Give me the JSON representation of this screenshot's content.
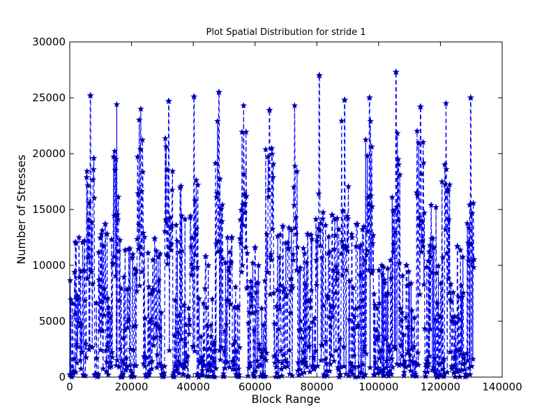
{
  "chart_data": {
    "type": "scatter",
    "title": "Plot Spatial Distribution for stride 1",
    "xlabel": "Block Range",
    "ylabel": "Number of Stresses",
    "xlim": [
      0,
      140000
    ],
    "ylim": [
      0,
      30000
    ],
    "xticks": [
      0,
      20000,
      40000,
      60000,
      80000,
      100000,
      120000,
      140000
    ],
    "xtick_labels": [
      "0",
      "20000",
      "40000",
      "60000",
      "80000",
      "100000",
      "120000",
      "140000"
    ],
    "yticks": [
      0,
      5000,
      10000,
      15000,
      20000,
      25000,
      30000
    ],
    "ytick_labels": [
      "0",
      "5000",
      "10000",
      "15000",
      "20000",
      "25000",
      "30000"
    ],
    "grid": false,
    "series": [
      {
        "line_style": "dashed",
        "marker": "star",
        "color": "#0000ff",
        "marker_color": "#000066",
        "x_range": [
          0,
          131000
        ],
        "baseline": 0,
        "peaks": [
          {
            "x": 6700,
            "y": 25200
          },
          {
            "x": 15200,
            "y": 24400
          },
          {
            "x": 23000,
            "y": 24000
          },
          {
            "x": 32000,
            "y": 24700
          },
          {
            "x": 40200,
            "y": 25100
          },
          {
            "x": 48300,
            "y": 25500
          },
          {
            "x": 56300,
            "y": 24300
          },
          {
            "x": 64700,
            "y": 23900
          },
          {
            "x": 72800,
            "y": 24300
          },
          {
            "x": 80800,
            "y": 27000
          },
          {
            "x": 89000,
            "y": 24800
          },
          {
            "x": 97000,
            "y": 25000
          },
          {
            "x": 105600,
            "y": 27300
          },
          {
            "x": 113600,
            "y": 24200
          },
          {
            "x": 121800,
            "y": 24500
          },
          {
            "x": 129800,
            "y": 25000
          }
        ],
        "peak_shoulder_values": [
          24000,
          23000,
          21000,
          20000,
          18000,
          17000,
          15500,
          14000,
          13000,
          12000
        ],
        "secondary_maxima": [
          {
            "x": 3000,
            "y": 12500
          },
          {
            "x": 11500,
            "y": 13700
          },
          {
            "x": 19500,
            "y": 11500
          },
          {
            "x": 27500,
            "y": 12400
          },
          {
            "x": 36000,
            "y": 17100
          },
          {
            "x": 44000,
            "y": 10800
          },
          {
            "x": 52500,
            "y": 12500
          },
          {
            "x": 60000,
            "y": 11600
          },
          {
            "x": 69000,
            "y": 13500
          },
          {
            "x": 77000,
            "y": 12800
          },
          {
            "x": 85000,
            "y": 14500
          },
          {
            "x": 93000,
            "y": 13700
          },
          {
            "x": 101000,
            "y": 10000
          },
          {
            "x": 109000,
            "y": 10000
          },
          {
            "x": 117000,
            "y": 15400
          },
          {
            "x": 125500,
            "y": 11700
          }
        ],
        "mid_band": [
          0,
          14000
        ],
        "seed": 1337
      }
    ]
  }
}
